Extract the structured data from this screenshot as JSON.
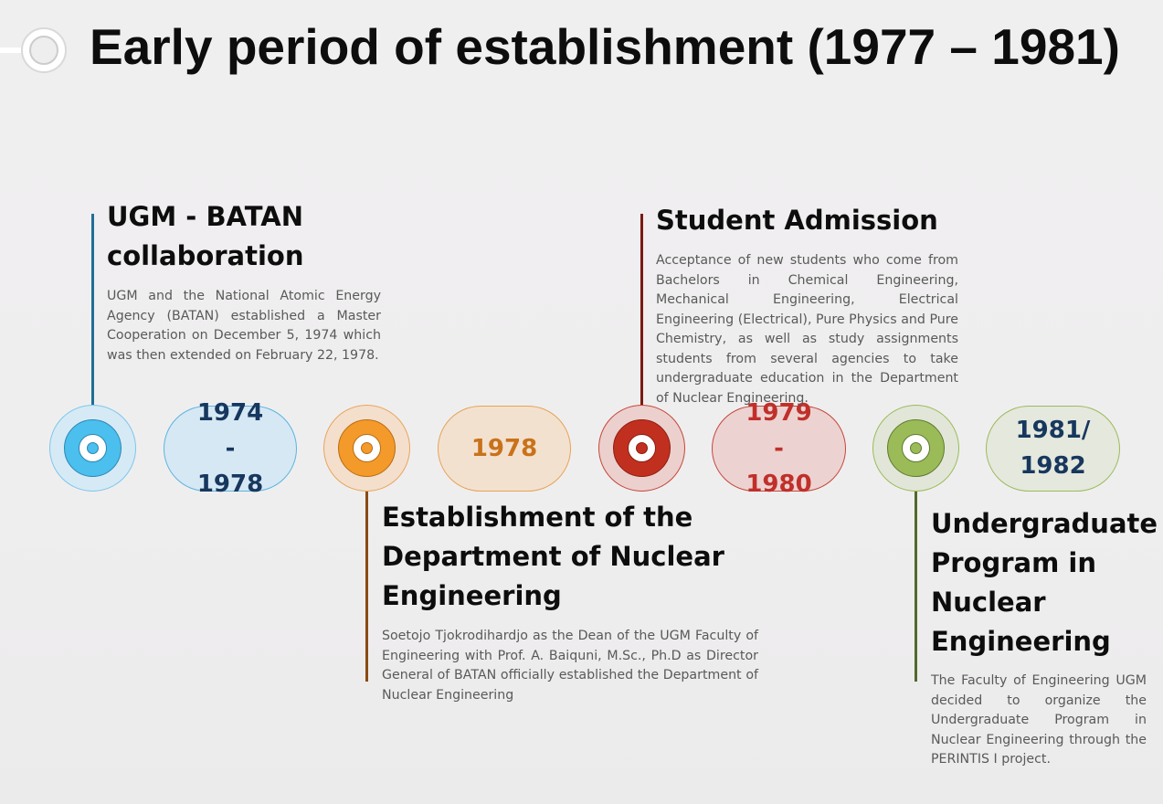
{
  "title": "Early period of establishment (1977 – 1981)",
  "colors": {
    "blue": "#4bbfee",
    "orange": "#f39a2a",
    "red": "#c1301f",
    "green": "#9bbb59",
    "dark_blue_text": "#17375e"
  },
  "timeline": [
    {
      "year": "1974 - 1978",
      "event_title": "UGM - BATAN collaboration",
      "description": "UGM and the National Atomic Energy Agency (BATAN) established a Master Cooperation on December 5, 1974 which was then extended on February 22, 1978."
    },
    {
      "year": "1978",
      "event_title": "Establishment of the Department of Nuclear Engineering",
      "description": "Soetojo Tjokrodihardjo as the Dean of the UGM Faculty of Engineering with Prof. A. Baiquni, M.Sc., Ph.D as Director General of BATAN officially established the Department of Nuclear Engineering"
    },
    {
      "year": "1979 - 1980",
      "event_title": "Student Admission",
      "description": "Acceptance of new students who come from Bachelors in Chemical Engineering, Mechanical Engineering, Electrical Engineering (Electrical), Pure Physics and Pure Chemistry, as well as study assignments students from several agencies to take undergraduate education in the Department of Nuclear Engineering."
    },
    {
      "year": "1981/ 1982",
      "event_title": "Undergraduate Program in Nuclear Engineering",
      "description": "The Faculty of Engineering UGM decided to organize the Undergraduate Program in Nuclear Engineering through the PERINTIS I project."
    }
  ]
}
